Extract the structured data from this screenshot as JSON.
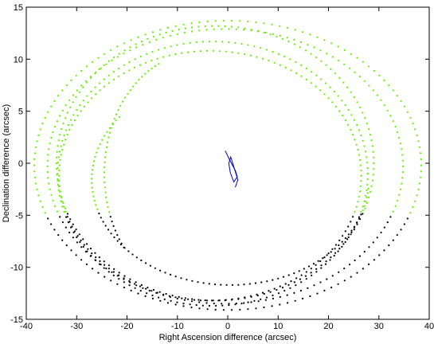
{
  "chart_data": {
    "type": "scatter",
    "title": "",
    "xlabel": "Right Ascension difference (arcsec)",
    "ylabel": "Declination difference (arcsec)",
    "xlim": [
      -40,
      40
    ],
    "ylim": [
      -15,
      15
    ],
    "xticks": [
      -40,
      -30,
      -20,
      -10,
      0,
      10,
      20,
      30,
      40
    ],
    "yticks": [
      -15,
      -10,
      -5,
      0,
      5,
      10,
      15
    ],
    "grid": false,
    "legend": "none",
    "colors": {
      "green": "#66ee00",
      "black": "#000000",
      "blue": "#0000cc"
    },
    "orbits": [
      {
        "cx": 0,
        "cy": -0.2,
        "rx": 38.4,
        "ry": 13.9
      },
      {
        "cx": -0.5,
        "cy": -0.3,
        "rx": 35.3,
        "ry": 13.2
      },
      {
        "cx": -2.5,
        "cy": 0.0,
        "rx": 31.5,
        "ry": 13.2
      },
      {
        "cx": -3.0,
        "cy": -1.0,
        "rx": 30.8,
        "ry": 12.7
      },
      {
        "cx": -3.5,
        "cy": -1.2,
        "rx": 30.0,
        "ry": 12.0
      }
    ],
    "arcs": [
      {
        "cx": -6,
        "cy": -1.0,
        "rx": 18.5,
        "ry": 11.6,
        "t0": 3.8,
        "t1": 2.0
      },
      {
        "cx": 0.5,
        "cy": -1.6,
        "rx": 27.5,
        "ry": 10.1,
        "t0": 2.5,
        "t1": 6.2
      }
    ],
    "black_below_y": -4.8,
    "blue_track": {
      "x": [
        -0.5,
        0.4,
        1.5,
        1.9,
        1.2,
        0.5,
        0.2,
        0.6,
        1.3,
        2.0,
        1.5
      ],
      "y": [
        1.2,
        0.3,
        -0.7,
        -1.3,
        -1.8,
        -0.9,
        0.0,
        0.6,
        -0.5,
        -1.6,
        -2.3
      ]
    }
  }
}
